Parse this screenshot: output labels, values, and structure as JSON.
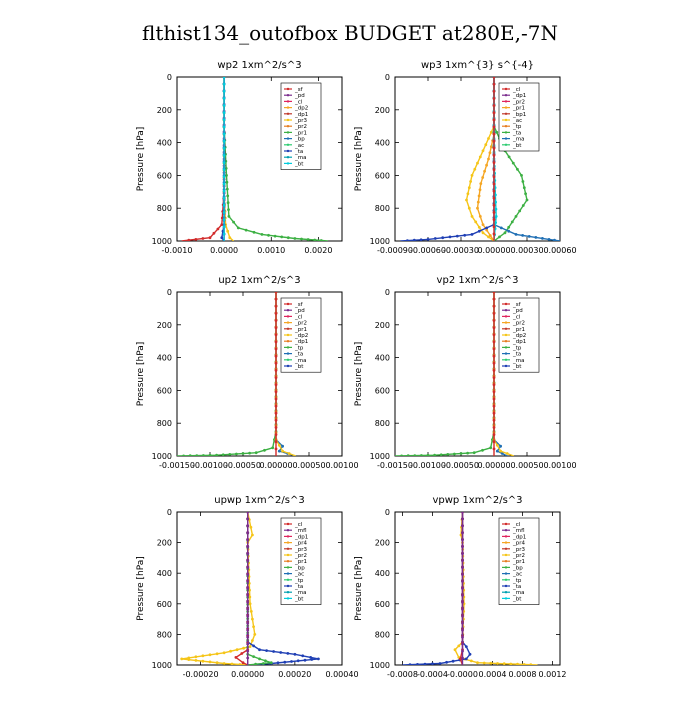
{
  "title": "flthist134_outofbox  BUDGET at280E,-7N",
  "chart_data": [
    {
      "type": "line",
      "title": "wp2   1xm^2/s^3",
      "ylabel": "Pressure [hPa]",
      "xlim": [
        -0.001,
        0.0025
      ],
      "ylim": [
        0,
        1000
      ],
      "yticks": [
        0,
        200,
        400,
        600,
        800,
        1000
      ],
      "xticks": [
        -0.001,
        0,
        0.001,
        0.002
      ],
      "xtick_labels": [
        "-0.0010",
        "0.0000",
        "0.0010",
        "0.0020"
      ],
      "legend": [
        "_sf",
        "_pd",
        "_cl",
        "_dp2",
        "_dp1",
        "_pr3",
        "_pr2",
        "_pr1",
        "_bp",
        "_ac",
        "_ta",
        "_ma",
        "_bt"
      ],
      "series": [
        {
          "name": "_dp1",
          "color": "#d22b2b",
          "x": [
            0,
            0,
            -5e-05,
            -0.0003,
            -0.0009
          ],
          "y": [
            0,
            700,
            900,
            980,
            1000
          ]
        },
        {
          "name": "_pr1",
          "color": "#f5c518",
          "x": [
            0,
            0,
            3e-05,
            0.00012,
            0.0002
          ],
          "y": [
            0,
            700,
            900,
            980,
            1000
          ]
        },
        {
          "name": "_bp",
          "color": "#3cb043",
          "x": [
            0,
            0,
            5e-05,
            0.0001,
            0.0003,
            0.0008,
            0.0015,
            0.0022
          ],
          "y": [
            0,
            300,
            600,
            850,
            920,
            960,
            985,
            1000
          ]
        },
        {
          "name": "_ta",
          "color": "#1f3fb4",
          "x": [
            0,
            0,
            -5e-05,
            0
          ],
          "y": [
            0,
            900,
            980,
            1000
          ]
        },
        {
          "name": "_pd",
          "color": "#7b2d8e",
          "x": [
            0,
            0,
            0
          ],
          "y": [
            0,
            500,
            1000
          ]
        },
        {
          "name": "_bt",
          "color": "#00ccdd",
          "x": [
            0,
            0
          ],
          "y": [
            0,
            1000
          ]
        }
      ]
    },
    {
      "type": "line",
      "title": "wp3   1xm^{3} s^{-4}",
      "ylabel": "Pressure [hPa]",
      "xlim": [
        -0.0009,
        0.0006
      ],
      "ylim": [
        0,
        1000
      ],
      "yticks": [
        0,
        200,
        400,
        600,
        800,
        1000
      ],
      "xticks": [
        -0.0009,
        -0.0006,
        -0.0003,
        0,
        0.0003,
        0.0006
      ],
      "xtick_labels": [
        "-0.00090",
        "-0.00060",
        "-0.00030",
        "0.00000",
        "0.00030",
        "0.00060"
      ],
      "legend": [
        "_cl",
        "_dp1",
        "_pr2",
        "_pr1",
        "_bp1",
        "_ac",
        "_tp",
        "_ta",
        "_ma",
        "_bt"
      ],
      "series": [
        {
          "name": "_pr1",
          "color": "#f5c518",
          "x": [
            0,
            0,
            -0.0001,
            -0.0002,
            -0.00025,
            -0.0002,
            -0.0001,
            0
          ],
          "y": [
            0,
            300,
            450,
            600,
            750,
            850,
            950,
            1000
          ]
        },
        {
          "name": "_pr2",
          "color": "#f5a623",
          "x": [
            0,
            0,
            -5e-05,
            -0.00012,
            -0.00015,
            -0.0001,
            0
          ],
          "y": [
            0,
            350,
            500,
            650,
            800,
            900,
            1000
          ]
        },
        {
          "name": "_ac",
          "color": "#3cb043",
          "x": [
            0,
            0,
            0.0001,
            0.00025,
            0.0003,
            0.0002,
            0.0001,
            0
          ],
          "y": [
            0,
            300,
            450,
            600,
            750,
            850,
            950,
            1000
          ]
        },
        {
          "name": "_ta",
          "color": "#1f3fb4",
          "x": [
            0,
            0,
            -0.0002,
            -0.0006,
            -0.00085
          ],
          "y": [
            0,
            900,
            960,
            990,
            1000
          ]
        },
        {
          "name": "_tp",
          "color": "#1f6fb4",
          "x": [
            0,
            0,
            0.0002,
            0.0005,
            0.0006
          ],
          "y": [
            0,
            900,
            960,
            990,
            1000
          ]
        },
        {
          "name": "_bt",
          "color": "#00ccdd",
          "x": [
            0,
            0,
            2e-05,
            0
          ],
          "y": [
            0,
            500,
            850,
            1000
          ]
        },
        {
          "name": "_cl",
          "color": "#d22b2b",
          "x": [
            0,
            0
          ],
          "y": [
            0,
            1000
          ]
        }
      ]
    },
    {
      "type": "line",
      "title": "up2   1xm^2/s^3",
      "ylabel": "Pressure [hPa]",
      "xlim": [
        -0.0015,
        0.001
      ],
      "ylim": [
        0,
        1000
      ],
      "yticks": [
        0,
        200,
        400,
        600,
        800,
        1000
      ],
      "xticks": [
        -0.0015,
        -0.001,
        -0.0005,
        0,
        0.0005,
        0.001
      ],
      "xtick_labels": [
        "-0.00150",
        "-0.00100",
        "-0.00050",
        "0.00000",
        "0.00050",
        "0.00100"
      ],
      "legend": [
        "_sf",
        "_pd",
        "_cl",
        "_pr2",
        "_pr1",
        "_dp2",
        "_dp1",
        "_tp",
        "_ta",
        "_ma",
        "_bt"
      ],
      "series": [
        {
          "name": "_dp2",
          "color": "#3cb043",
          "x": [
            0,
            0,
            -5e-05,
            -0.0003,
            -0.0009,
            -0.0015
          ],
          "y": [
            0,
            850,
            950,
            980,
            995,
            1000
          ]
        },
        {
          "name": "_tp",
          "color": "#1f6fb4",
          "x": [
            0,
            0,
            0.0001,
            5e-05,
            0.0003
          ],
          "y": [
            0,
            900,
            940,
            970,
            1000
          ]
        },
        {
          "name": "_pr1",
          "color": "#f5c518",
          "x": [
            0,
            0,
            0.0001,
            0.0003
          ],
          "y": [
            0,
            900,
            970,
            1000
          ]
        },
        {
          "name": "_cl",
          "color": "#d22b2b",
          "x": [
            0,
            0
          ],
          "y": [
            0,
            1000
          ]
        }
      ]
    },
    {
      "type": "line",
      "title": "vp2   1xm^2/s^3",
      "ylabel": "Pressure [hPa]",
      "xlim": [
        -0.0015,
        0.001
      ],
      "ylim": [
        0,
        1000
      ],
      "yticks": [
        0,
        200,
        400,
        600,
        800,
        1000
      ],
      "xticks": [
        -0.0015,
        -0.001,
        -0.0005,
        0,
        0.0005,
        0.001
      ],
      "xtick_labels": [
        "-0.00150",
        "-0.00100",
        "-0.00050",
        "0.00000",
        "0.00050",
        "0.00100"
      ],
      "legend": [
        "_sf",
        "_pd",
        "_cl",
        "_pr2",
        "_pr1",
        "_dp2",
        "_dp1",
        "_tp",
        "_ta",
        "_ma",
        "_bt"
      ],
      "series": [
        {
          "name": "_dp2",
          "color": "#3cb043",
          "x": [
            0,
            0,
            -5e-05,
            -0.0003,
            -0.0009,
            -0.0015
          ],
          "y": [
            0,
            850,
            950,
            980,
            995,
            1000
          ]
        },
        {
          "name": "_tp",
          "color": "#1f6fb4",
          "x": [
            0,
            0,
            0.0001,
            5e-05,
            0.0002
          ],
          "y": [
            0,
            900,
            940,
            970,
            1000
          ]
        },
        {
          "name": "_pr1",
          "color": "#f5c518",
          "x": [
            0,
            0,
            0.0001,
            0.0003
          ],
          "y": [
            0,
            900,
            970,
            1000
          ]
        },
        {
          "name": "_cl",
          "color": "#d22b2b",
          "x": [
            0,
            0
          ],
          "y": [
            0,
            1000
          ]
        }
      ]
    },
    {
      "type": "line",
      "title": "upwp   1xm^2/s^3",
      "ylabel": "Pressure [hPa]",
      "xlim": [
        -0.0003,
        0.0004
      ],
      "ylim": [
        0,
        1000
      ],
      "yticks": [
        0,
        200,
        400,
        600,
        800,
        1000
      ],
      "xticks": [
        -0.0002,
        0,
        0.0002,
        0.0004
      ],
      "xtick_labels": [
        "-0.00020",
        "0.00000",
        "0.00020",
        "0.00040"
      ],
      "legend": [
        "_cl",
        "_mfl",
        "_dp1",
        "_pr4",
        "_pr3",
        "_pr2",
        "_pr1",
        "_bp",
        "_ac",
        "_tp",
        "_ta",
        "_ma",
        "_bt"
      ],
      "series": [
        {
          "name": "_pr1",
          "color": "#f5c518",
          "x": [
            0,
            2e-05,
            0,
            1e-05,
            3e-05,
            1e-05,
            -0.0001,
            -0.00028,
            -0.0001,
            0
          ],
          "y": [
            0,
            150,
            200,
            600,
            800,
            880,
            920,
            960,
            990,
            1000
          ]
        },
        {
          "name": "_ta",
          "color": "#1f3fb4",
          "x": [
            0,
            0,
            5e-05,
            0.0002,
            0.0003,
            0.0001,
            0
          ],
          "y": [
            0,
            850,
            900,
            930,
            960,
            990,
            1000
          ]
        },
        {
          "name": "_ac",
          "color": "#3cb043",
          "x": [
            0,
            0,
            5e-05,
            0.0001,
            0
          ],
          "y": [
            0,
            930,
            960,
            985,
            1000
          ]
        },
        {
          "name": "_dp1",
          "color": "#d22b2b",
          "x": [
            0,
            0,
            -5e-05,
            -2e-05,
            0
          ],
          "y": [
            0,
            900,
            950,
            985,
            1000
          ]
        },
        {
          "name": "_cl",
          "color": "#7b2d8e",
          "x": [
            0,
            0
          ],
          "y": [
            0,
            1000
          ]
        }
      ]
    },
    {
      "type": "line",
      "title": "vpwp   1xm^2/s^3",
      "ylabel": "Pressure [hPa]",
      "xlim": [
        -0.0009,
        0.0013
      ],
      "ylim": [
        0,
        1000
      ],
      "yticks": [
        0,
        200,
        400,
        600,
        800,
        1000
      ],
      "xticks": [
        -0.0008,
        -0.0004,
        0,
        0.0004,
        0.0008,
        0.0012
      ],
      "xtick_labels": [
        "-0.0008",
        "-0.0004",
        "-0.0000",
        "0.0004",
        "0.0008",
        "0.0012"
      ],
      "legend": [
        "_cl",
        "_mfl",
        "_dp1",
        "_pr4",
        "_pr3",
        "_pr2",
        "_pr1",
        "_bp",
        "_ac",
        "_tp",
        "_ta",
        "_ma",
        "_bt"
      ],
      "series": [
        {
          "name": "_pr1",
          "color": "#f5c518",
          "x": [
            0,
            -2e-05,
            0,
            2e-05,
            0,
            -0.0001,
            -5e-05,
            0.0002,
            0.001
          ],
          "y": [
            0,
            150,
            200,
            600,
            850,
            900,
            950,
            985,
            1000
          ]
        },
        {
          "name": "_ta",
          "color": "#1f3fb4",
          "x": [
            0,
            0,
            5e-05,
            0.0001,
            5e-05,
            -0.0003,
            -0.0008
          ],
          "y": [
            0,
            850,
            880,
            930,
            960,
            990,
            1000
          ]
        },
        {
          "name": "_dp1",
          "color": "#d22b2b",
          "x": [
            0,
            0,
            -3e-05,
            0
          ],
          "y": [
            0,
            900,
            960,
            1000
          ]
        },
        {
          "name": "_cl",
          "color": "#7b2d8e",
          "x": [
            0,
            0
          ],
          "y": [
            0,
            1000
          ]
        }
      ]
    }
  ]
}
